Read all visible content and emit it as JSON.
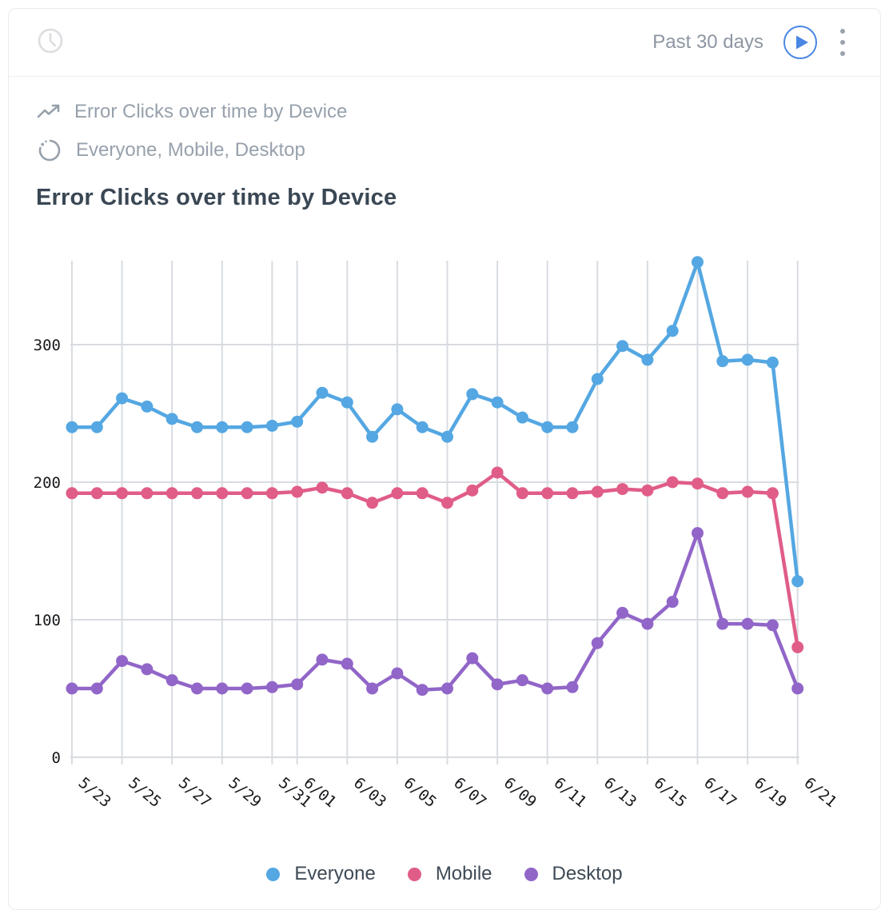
{
  "header": {
    "time_range_label": "Past 30 days",
    "icons": {
      "left": "clock-icon",
      "run": "play-icon",
      "menu": "kebab-menu-icon"
    }
  },
  "meta": {
    "metric_line": "Error Clicks over time by Device",
    "metric_icon": "trending-up-icon",
    "segments_line": "Everyone, Mobile, Desktop",
    "segments_icon": "spinner-icon"
  },
  "title": "Error Clicks over time by Device",
  "colors": {
    "grid": "#D8DCE1",
    "axis_text": "#17191C",
    "muted_text": "#97A1AC",
    "title_text": "#3A4754",
    "legend_text": "#3E4A56",
    "card_border": "#E9EBEE",
    "play_accent": "#4A86E4",
    "everyone": "#54A7E2",
    "mobile": "#E05D88",
    "desktop": "#9166C8"
  },
  "chart_data": {
    "type": "line",
    "title": "Error Clicks over time by Device",
    "xlabel": "",
    "ylabel": "",
    "grid": true,
    "legend_position": "bottom",
    "y_ticks": [
      0,
      100,
      200,
      300
    ],
    "ylim": [
      0,
      365
    ],
    "x": [
      "5/23",
      "5/24",
      "5/25",
      "5/26",
      "5/27",
      "5/28",
      "5/29",
      "5/30",
      "5/31",
      "6/01",
      "6/02",
      "6/03",
      "6/04",
      "6/05",
      "6/06",
      "6/07",
      "6/08",
      "6/09",
      "6/10",
      "6/11",
      "6/12",
      "6/13",
      "6/14",
      "6/15",
      "6/16",
      "6/17",
      "6/18",
      "6/19",
      "6/20",
      "6/21"
    ],
    "x_tick_indices": [
      0,
      2,
      4,
      6,
      8,
      9,
      11,
      13,
      15,
      17,
      19,
      21,
      23,
      25,
      27,
      29
    ],
    "series": [
      {
        "name": "Everyone",
        "color": "#54A7E2",
        "values": [
          240,
          240,
          261,
          255,
          246,
          240,
          240,
          240,
          241,
          244,
          265,
          258,
          233,
          253,
          240,
          233,
          264,
          258,
          247,
          240,
          240,
          275,
          299,
          289,
          310,
          360,
          288,
          289,
          287,
          128
        ]
      },
      {
        "name": "Mobile",
        "color": "#E05D88",
        "values": [
          192,
          192,
          192,
          192,
          192,
          192,
          192,
          192,
          192,
          193,
          196,
          192,
          185,
          192,
          192,
          185,
          194,
          207,
          192,
          192,
          192,
          193,
          195,
          194,
          200,
          199,
          192,
          193,
          192,
          80
        ]
      },
      {
        "name": "Desktop",
        "color": "#9166C8",
        "values": [
          50,
          50,
          70,
          64,
          56,
          50,
          50,
          50,
          51,
          53,
          71,
          68,
          50,
          61,
          49,
          50,
          72,
          53,
          56,
          50,
          51,
          83,
          105,
          97,
          113,
          163,
          97,
          97,
          96,
          50
        ]
      }
    ]
  }
}
